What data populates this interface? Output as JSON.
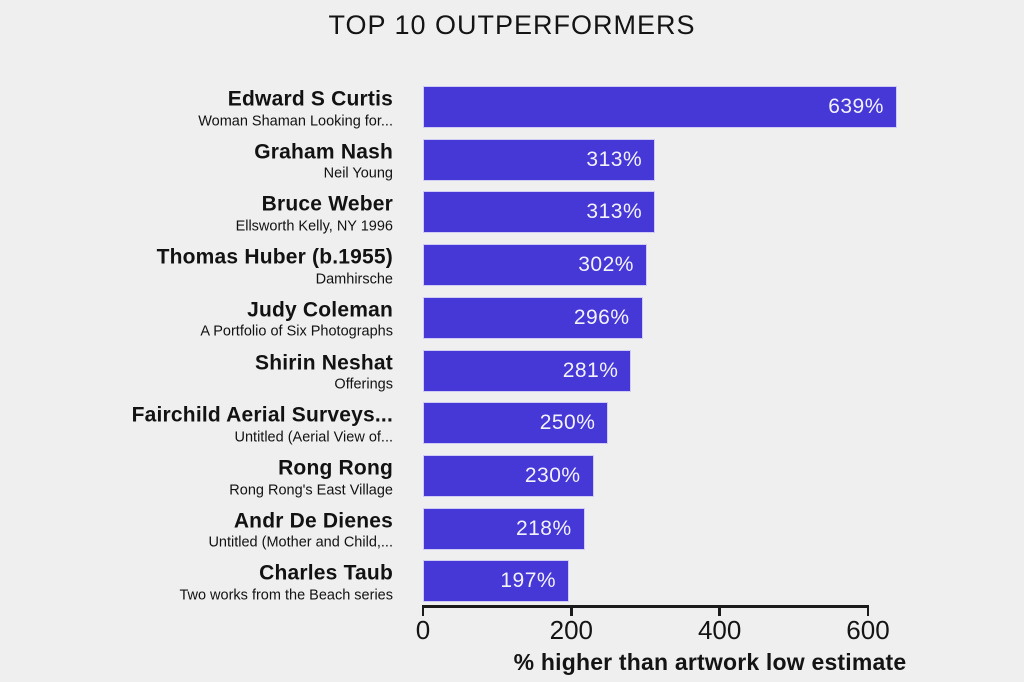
{
  "figure": {
    "background_color": "#efeff0",
    "text_color": "#141414"
  },
  "chart_data": {
    "type": "bar",
    "orientation": "horizontal",
    "title": "TOP 10 OUTPERFORMERS",
    "xlabel": "% higher than artwork low estimate",
    "xlim": [
      0,
      600
    ],
    "xticks": [
      "0",
      "200",
      "400",
      "600"
    ],
    "xtick_values": [
      0,
      200,
      400,
      600
    ],
    "grid": false,
    "legend": "none",
    "bar_color": "#4637d7",
    "bar_edge_color": "#ffffff",
    "value_label_color": "#f3f2fa",
    "rows": [
      {
        "artist": "Edward S Curtis",
        "artwork": "Woman Shaman Looking for...",
        "value": 639,
        "value_label": "639%"
      },
      {
        "artist": "Graham Nash",
        "artwork": "Neil Young",
        "value": 313,
        "value_label": "313%"
      },
      {
        "artist": "Bruce Weber",
        "artwork": "Ellsworth Kelly, NY 1996",
        "value": 313,
        "value_label": "313%"
      },
      {
        "artist": "Thomas Huber (b.1955)",
        "artwork": "Damhirsche",
        "value": 302,
        "value_label": "302%"
      },
      {
        "artist": "Judy Coleman",
        "artwork": "A Portfolio of Six Photographs",
        "value": 296,
        "value_label": "296%"
      },
      {
        "artist": "Shirin Neshat",
        "artwork": "Offerings",
        "value": 281,
        "value_label": "281%"
      },
      {
        "artist": "Fairchild Aerial Surveys...",
        "artwork": "Untitled (Aerial View of...",
        "value": 250,
        "value_label": "250%"
      },
      {
        "artist": "Rong Rong",
        "artwork": "Rong Rong's East Village",
        "value": 230,
        "value_label": "230%"
      },
      {
        "artist": "Andr De Dienes",
        "artwork": "Untitled (Mother and Child,...",
        "value": 218,
        "value_label": "218%"
      },
      {
        "artist": "Charles Taub",
        "artwork": "Two works from the Beach series",
        "value": 197,
        "value_label": "197%"
      }
    ]
  }
}
